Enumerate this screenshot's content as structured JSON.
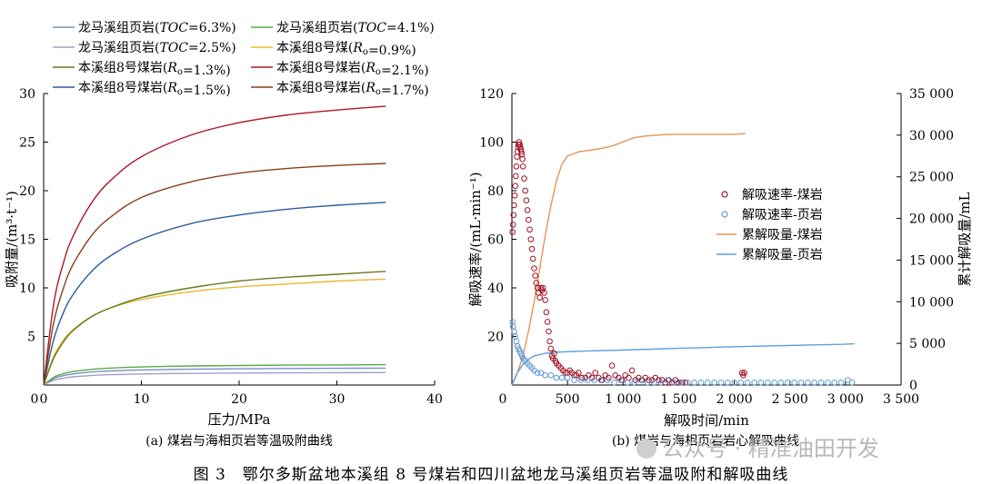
{
  "figure_caption": "图 3　鄂尔多斯盆地本溪组 8 号煤岩和四川盆地龙马溪组页岩等温吸附和解吸曲线",
  "watermark": "公众号 · 精准油田开发",
  "chart_data": [
    {
      "type": "line",
      "caption": "(a) 煤岩与海相页岩等温吸附曲线",
      "xlabel": "压力/MPa",
      "ylabel": "吸附量/(m³·t⁻¹)",
      "xlim": [
        0,
        40
      ],
      "ylim": [
        0,
        30
      ],
      "xticks": [
        0,
        10,
        20,
        30,
        40
      ],
      "yticks": [
        5,
        10,
        15,
        20,
        25,
        30
      ],
      "grid": false,
      "legend_position": "top-left",
      "series": [
        {
          "name": "龙马溪组页岩(TOC=6.3%)",
          "color": "#7a8fc4",
          "pmax": 35,
          "x": [
            0,
            1,
            2,
            3,
            5,
            7,
            10,
            15,
            20,
            25,
            30,
            35
          ],
          "y": [
            0,
            0.64,
            0.96,
            1.14,
            1.35,
            1.46,
            1.55,
            1.63,
            1.67,
            1.7,
            1.72,
            1.74
          ]
        },
        {
          "name": "龙马溪组页岩(TOC=4.1%)",
          "color": "#5aa84a",
          "x": [
            0,
            1,
            2,
            3,
            5,
            7,
            10,
            15,
            20,
            25,
            30,
            35
          ],
          "y": [
            0,
            0.78,
            1.16,
            1.38,
            1.62,
            1.75,
            1.86,
            1.96,
            2.01,
            2.05,
            2.07,
            2.09
          ]
        },
        {
          "name": "龙马溪组页岩(TOC=2.5%)",
          "color": "#a0a0c8",
          "x": [
            0,
            1,
            2,
            3,
            5,
            7,
            10,
            15,
            20,
            25,
            30,
            35
          ],
          "y": [
            0,
            0.47,
            0.7,
            0.84,
            0.99,
            1.07,
            1.14,
            1.2,
            1.23,
            1.25,
            1.27,
            1.28
          ]
        },
        {
          "name": "本溪组8号煤(Ro=0.9%)",
          "color": "#e8b830",
          "x": [
            0,
            1,
            2,
            3,
            5,
            7,
            10,
            15,
            20,
            25,
            30,
            35
          ],
          "y": [
            0,
            2.9,
            4.6,
            5.7,
            7.1,
            8.0,
            8.8,
            9.6,
            10.1,
            10.4,
            10.7,
            10.9
          ]
        },
        {
          "name": "本溪组8号煤岩(Ro=1.3%)",
          "color": "#6a7a1e",
          "x": [
            0,
            1,
            2,
            3,
            5,
            7,
            10,
            15,
            20,
            25,
            30,
            35
          ],
          "y": [
            0,
            2.7,
            4.4,
            5.6,
            7.1,
            8.0,
            9.0,
            10.0,
            10.7,
            11.1,
            11.4,
            11.7
          ]
        },
        {
          "name": "本溪组8号煤岩(Ro=2.1%)",
          "color": "#b01828",
          "x": [
            0,
            1,
            2,
            3,
            5,
            7,
            10,
            15,
            20,
            25,
            30,
            35
          ],
          "y": [
            0,
            8.2,
            12.5,
            15.3,
            18.9,
            21.2,
            23.5,
            25.7,
            27.0,
            27.8,
            28.3,
            28.7
          ]
        },
        {
          "name": "本溪组8号煤岩(Ro=1.5%)",
          "color": "#2a5c9c",
          "x": [
            0,
            1,
            2,
            3,
            5,
            7,
            10,
            15,
            20,
            25,
            30,
            35
          ],
          "y": [
            0,
            4.6,
            7.4,
            9.3,
            11.8,
            13.4,
            15.0,
            16.6,
            17.5,
            18.1,
            18.5,
            18.8
          ]
        },
        {
          "name": "本溪组8号煤岩(Ro=1.7%)",
          "color": "#8a3c1c",
          "x": [
            0,
            1,
            2,
            3,
            5,
            7,
            10,
            15,
            20,
            25,
            30,
            35
          ],
          "y": [
            0,
            6.3,
            9.9,
            12.4,
            15.5,
            17.4,
            19.3,
            20.9,
            21.8,
            22.3,
            22.6,
            22.8
          ]
        }
      ]
    },
    {
      "type": "scatter",
      "caption": "(b) 煤岩与海相页岩岩心解吸曲线",
      "xlabel": "解吸时间/min",
      "ylabel": "解吸速率/(mL·min⁻¹)",
      "y2label": "累计解吸量/mL",
      "xlim": [
        0,
        3500
      ],
      "ylim": [
        0,
        120
      ],
      "y2lim": [
        0,
        35000
      ],
      "xticks": [
        0,
        500,
        1000,
        1500,
        2000,
        2500,
        3000,
        3500
      ],
      "xtick_labels": [
        "0",
        "500",
        "1 000",
        "1 500",
        "2 000",
        "2 500",
        "3 000",
        "3 500"
      ],
      "yticks": [
        20,
        40,
        60,
        80,
        100,
        120
      ],
      "y2ticks": [
        0,
        5000,
        10000,
        15000,
        20000,
        25000,
        30000,
        35000
      ],
      "y2tick_labels": [
        "0",
        "5 000",
        "10 000",
        "15 000",
        "20 000",
        "25 000",
        "30 000",
        "35 000"
      ],
      "grid": false,
      "legend_position": "center-right",
      "series": [
        {
          "name": "解吸速率-煤岩",
          "kind": "scatter",
          "color": "#a01020",
          "axis": "left",
          "x": [
            5,
            10,
            15,
            20,
            25,
            30,
            35,
            40,
            45,
            50,
            55,
            60,
            65,
            70,
            75,
            80,
            85,
            90,
            95,
            100,
            110,
            120,
            130,
            140,
            150,
            160,
            170,
            180,
            190,
            200,
            210,
            220,
            230,
            240,
            250,
            260,
            270,
            280,
            290,
            300,
            310,
            320,
            330,
            340,
            350,
            360,
            370,
            380,
            390,
            400,
            420,
            440,
            460,
            480,
            500,
            520,
            540,
            560,
            580,
            600,
            630,
            660,
            690,
            720,
            750,
            780,
            810,
            840,
            870,
            900,
            930,
            960,
            990,
            1020,
            1050,
            1080,
            1110,
            1140,
            1170,
            1200,
            1230,
            1260,
            1290,
            1320,
            1350,
            1380,
            1410,
            1440,
            1470,
            1500,
            1530,
            1560,
            2070,
            2080,
            2090
          ],
          "y": [
            63,
            66,
            70,
            74,
            78,
            82,
            86,
            90,
            94,
            96,
            98,
            99,
            100,
            99,
            98,
            97,
            96,
            95,
            93,
            90,
            85,
            80,
            76,
            72,
            68,
            64,
            60,
            56,
            52,
            48,
            45,
            42,
            40,
            38,
            36,
            40,
            39,
            40,
            38,
            35,
            30,
            26,
            22,
            18,
            15,
            12,
            11,
            13,
            10,
            9,
            8,
            7,
            6,
            5,
            5,
            6,
            5,
            4,
            4,
            5,
            3,
            3,
            4,
            3,
            5,
            3,
            2,
            4,
            3,
            8,
            4,
            3,
            2,
            4,
            3,
            6,
            2,
            3,
            2,
            3,
            2,
            2,
            3,
            2,
            2,
            1,
            2,
            1,
            2,
            1,
            1,
            1,
            5,
            4,
            5
          ]
        },
        {
          "name": "解吸速率-页岩",
          "kind": "scatter",
          "color": "#5a9ad8",
          "axis": "left",
          "x": [
            5,
            10,
            20,
            30,
            40,
            50,
            60,
            70,
            80,
            90,
            100,
            120,
            140,
            160,
            180,
            200,
            230,
            260,
            300,
            350,
            400,
            450,
            500,
            560,
            620,
            680,
            740,
            800,
            860,
            920,
            980,
            1040,
            1100,
            1160,
            1220,
            1280,
            1340,
            1400,
            1460,
            1520,
            1580,
            1640,
            1700,
            1760,
            1820,
            1880,
            1940,
            2000,
            2060,
            2120,
            2180,
            2240,
            2300,
            2360,
            2420,
            2480,
            2540,
            2600,
            2660,
            2720,
            2780,
            2840,
            2900,
            2960,
            3020,
            3060
          ],
          "y": [
            26,
            24,
            22,
            20,
            18,
            16,
            15,
            14,
            13,
            12,
            11,
            10,
            9,
            8,
            7,
            6,
            5,
            5,
            4,
            4,
            3,
            3,
            3,
            2,
            2,
            2,
            2,
            2,
            2,
            1,
            2,
            1,
            1,
            2,
            1,
            1,
            1,
            2,
            1,
            1,
            1,
            1,
            1,
            1,
            1,
            1,
            1,
            1,
            1,
            1,
            1,
            1,
            1,
            1,
            1,
            1,
            1,
            1,
            1,
            1,
            1,
            1,
            1,
            1,
            2,
            1
          ]
        },
        {
          "name": "累解吸量-煤岩",
          "kind": "line",
          "color": "#e8925a",
          "axis": "right",
          "x": [
            0,
            50,
            100,
            150,
            200,
            250,
            300,
            350,
            400,
            450,
            500,
            600,
            700,
            800,
            900,
            1000,
            1100,
            1200,
            1300,
            1400,
            1600,
            1800,
            2000,
            2100
          ],
          "y": [
            0,
            1500,
            3500,
            6500,
            10000,
            14000,
            18000,
            21500,
            24500,
            26500,
            27500,
            28000,
            28200,
            28400,
            28700,
            29200,
            29700,
            29900,
            30000,
            30100,
            30100,
            30100,
            30100,
            30200
          ]
        },
        {
          "name": "累解吸量-页岩",
          "kind": "line",
          "color": "#5aa0e0",
          "axis": "right",
          "x": [
            0,
            50,
            100,
            150,
            200,
            300,
            400,
            500,
            700,
            1000,
            1500,
            2000,
            2500,
            3000,
            3080
          ],
          "y": [
            0,
            1500,
            2500,
            3100,
            3500,
            3800,
            3950,
            4000,
            4100,
            4200,
            4400,
            4600,
            4750,
            4900,
            4950
          ]
        }
      ]
    }
  ]
}
